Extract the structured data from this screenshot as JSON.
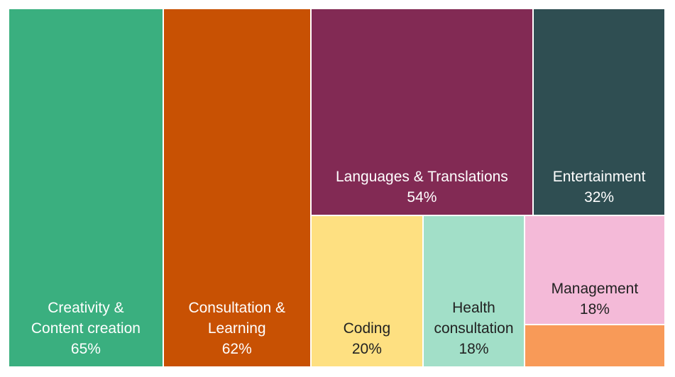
{
  "chart_data": {
    "type": "treemap",
    "categories": [
      "Creativity & Content creation",
      "Consultation & Learning",
      "Languages & Translations",
      "Entertainment",
      "Coding",
      "Health consultation",
      "Management",
      null
    ],
    "values": [
      65,
      62,
      54,
      32,
      20,
      18,
      18,
      7
    ],
    "value_labels": [
      "65%",
      "62%",
      "54%",
      "32%",
      "20%",
      "18%",
      "18%",
      null
    ],
    "colors": [
      "#3aaf7f",
      "#c85103",
      "#822a54",
      "#2f4e52",
      "#fee081",
      "#a2dfc8",
      "#f4bad8",
      "#f89a58"
    ]
  }
}
